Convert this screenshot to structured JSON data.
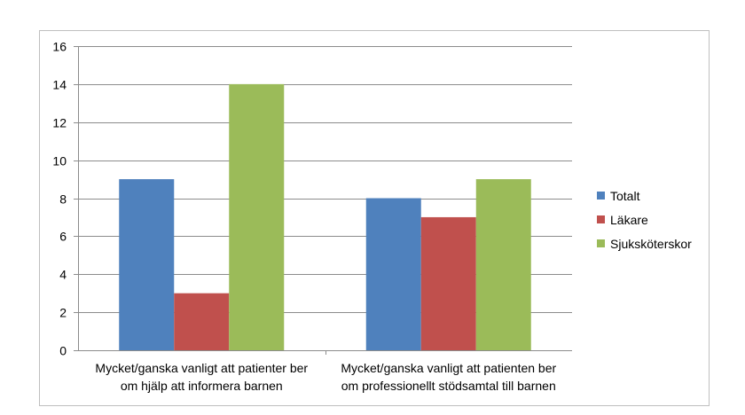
{
  "chart_data": {
    "type": "bar",
    "categories": [
      [
        "Mycket/ganska vanligt att patienter ber",
        "om hjälp att informera barnen"
      ],
      [
        "Mycket/ganska vanligt att patienten ber",
        "om professionellt stödsamtal till barnen"
      ]
    ],
    "series": [
      {
        "name": "Totalt",
        "values": [
          9,
          8
        ],
        "color": "#4f81bd"
      },
      {
        "name": "Läkare",
        "values": [
          3,
          7
        ],
        "color": "#c0504d"
      },
      {
        "name": "Sjuksköterskor",
        "values": [
          14,
          9
        ],
        "color": "#9bbb59"
      }
    ],
    "title": "",
    "xlabel": "",
    "ylabel": "",
    "ylim": [
      0,
      16
    ],
    "yticks": [
      0,
      2,
      4,
      6,
      8,
      10,
      12,
      14,
      16
    ],
    "grid": true,
    "legend_position": "right"
  }
}
